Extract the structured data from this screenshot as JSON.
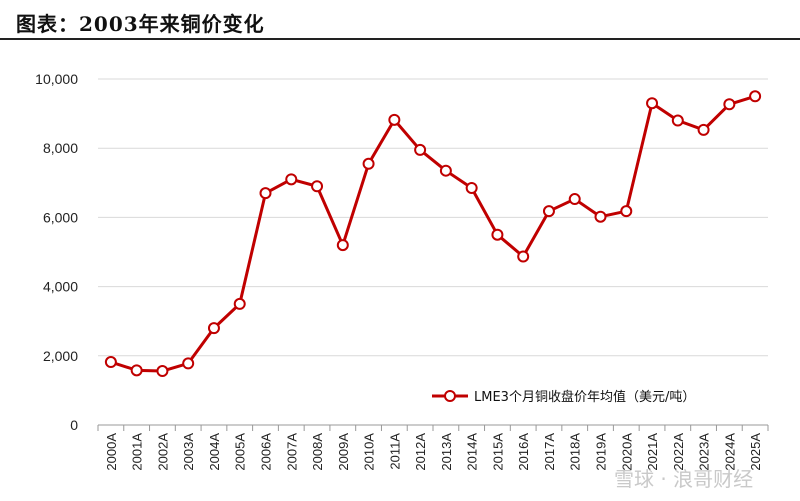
{
  "header": {
    "title": "图表：2003年来铜价变化"
  },
  "watermark": {
    "text": "雪球 · 浪哥财经"
  },
  "chart_data": {
    "type": "line",
    "title": "图表：2003年来铜价变化",
    "xlabel": "",
    "ylabel": "",
    "categories": [
      "2000A",
      "2001A",
      "2002A",
      "2003A",
      "2004A",
      "2005A",
      "2006A",
      "2007A",
      "2008A",
      "2009A",
      "2010A",
      "2011A",
      "2012A",
      "2013A",
      "2014A",
      "2015A",
      "2016A",
      "2017A",
      "2018A",
      "2019A",
      "2020A",
      "2021A",
      "2022A",
      "2023A",
      "2024A",
      "2025A"
    ],
    "series": [
      {
        "name": "LME3个月铜收盘价年均值（美元/吨）",
        "color": "#c00000",
        "values": [
          1820,
          1580,
          1560,
          1780,
          2800,
          3500,
          6700,
          7100,
          6900,
          5200,
          7550,
          8820,
          7950,
          7350,
          6850,
          5500,
          4870,
          6180,
          6530,
          6020,
          6180,
          9300,
          8800,
          8530,
          9270,
          9500
        ]
      }
    ],
    "ylim": [
      0,
      10000
    ],
    "yticks": [
      "0",
      "2,000",
      "4,000",
      "6,000",
      "8,000",
      "10,000"
    ],
    "yticks_values": [
      0,
      2000,
      4000,
      6000,
      8000,
      10000
    ],
    "grid": true,
    "legend": "bottom-right"
  }
}
